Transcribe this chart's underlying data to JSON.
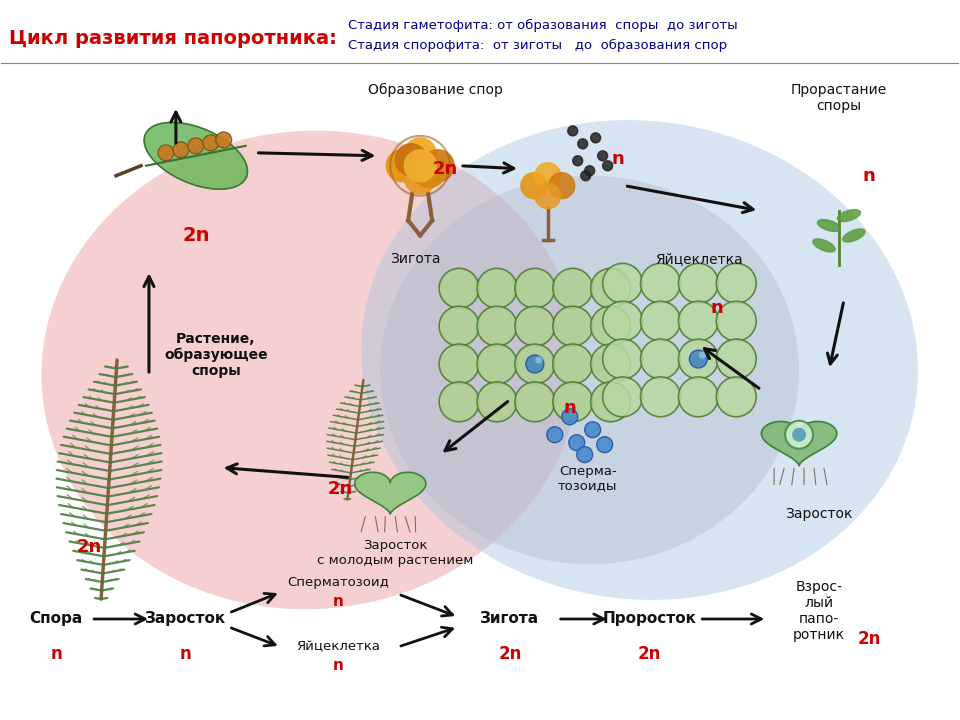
{
  "title_red": "Цикл развития папоротника:",
  "title_blue1": "Стадия гаметофита: от образования  споры  до зиготы",
  "title_blue2": "Стадия спорофита:  от зиготы   до  образования спор",
  "text_red": "#cc0000",
  "text_dark": "#111111",
  "text_blue": "#00008B",
  "bg_pink": "#f2b8b8",
  "bg_blue": "#a8c4e0",
  "bg_gray": "#c8c8c8",
  "labels": {
    "obrazovanie_spor": "Образование спор",
    "prorastanie_spory": "Прорастание\nспоры",
    "zigota": "Зигота",
    "yaycekletka": "Яйцеклетка",
    "rastenie": "Растение,\nобразующее\nспоры",
    "zarostok_molodym": "Заросток\nс молодым растением",
    "spermatozoidy": "Сперма-\nтозоиды",
    "zarostok_right": "Заросток",
    "spora": "Спора",
    "spermatozoid_bot": "Сперматозоид",
    "yaycekletka_bot": "Яйцеклетка",
    "zigota_bot": "Зигота",
    "prorostok_bot": "Проросток",
    "vzroslyy_bot": "Взрос-\nлый\nпапо-\nротник"
  }
}
